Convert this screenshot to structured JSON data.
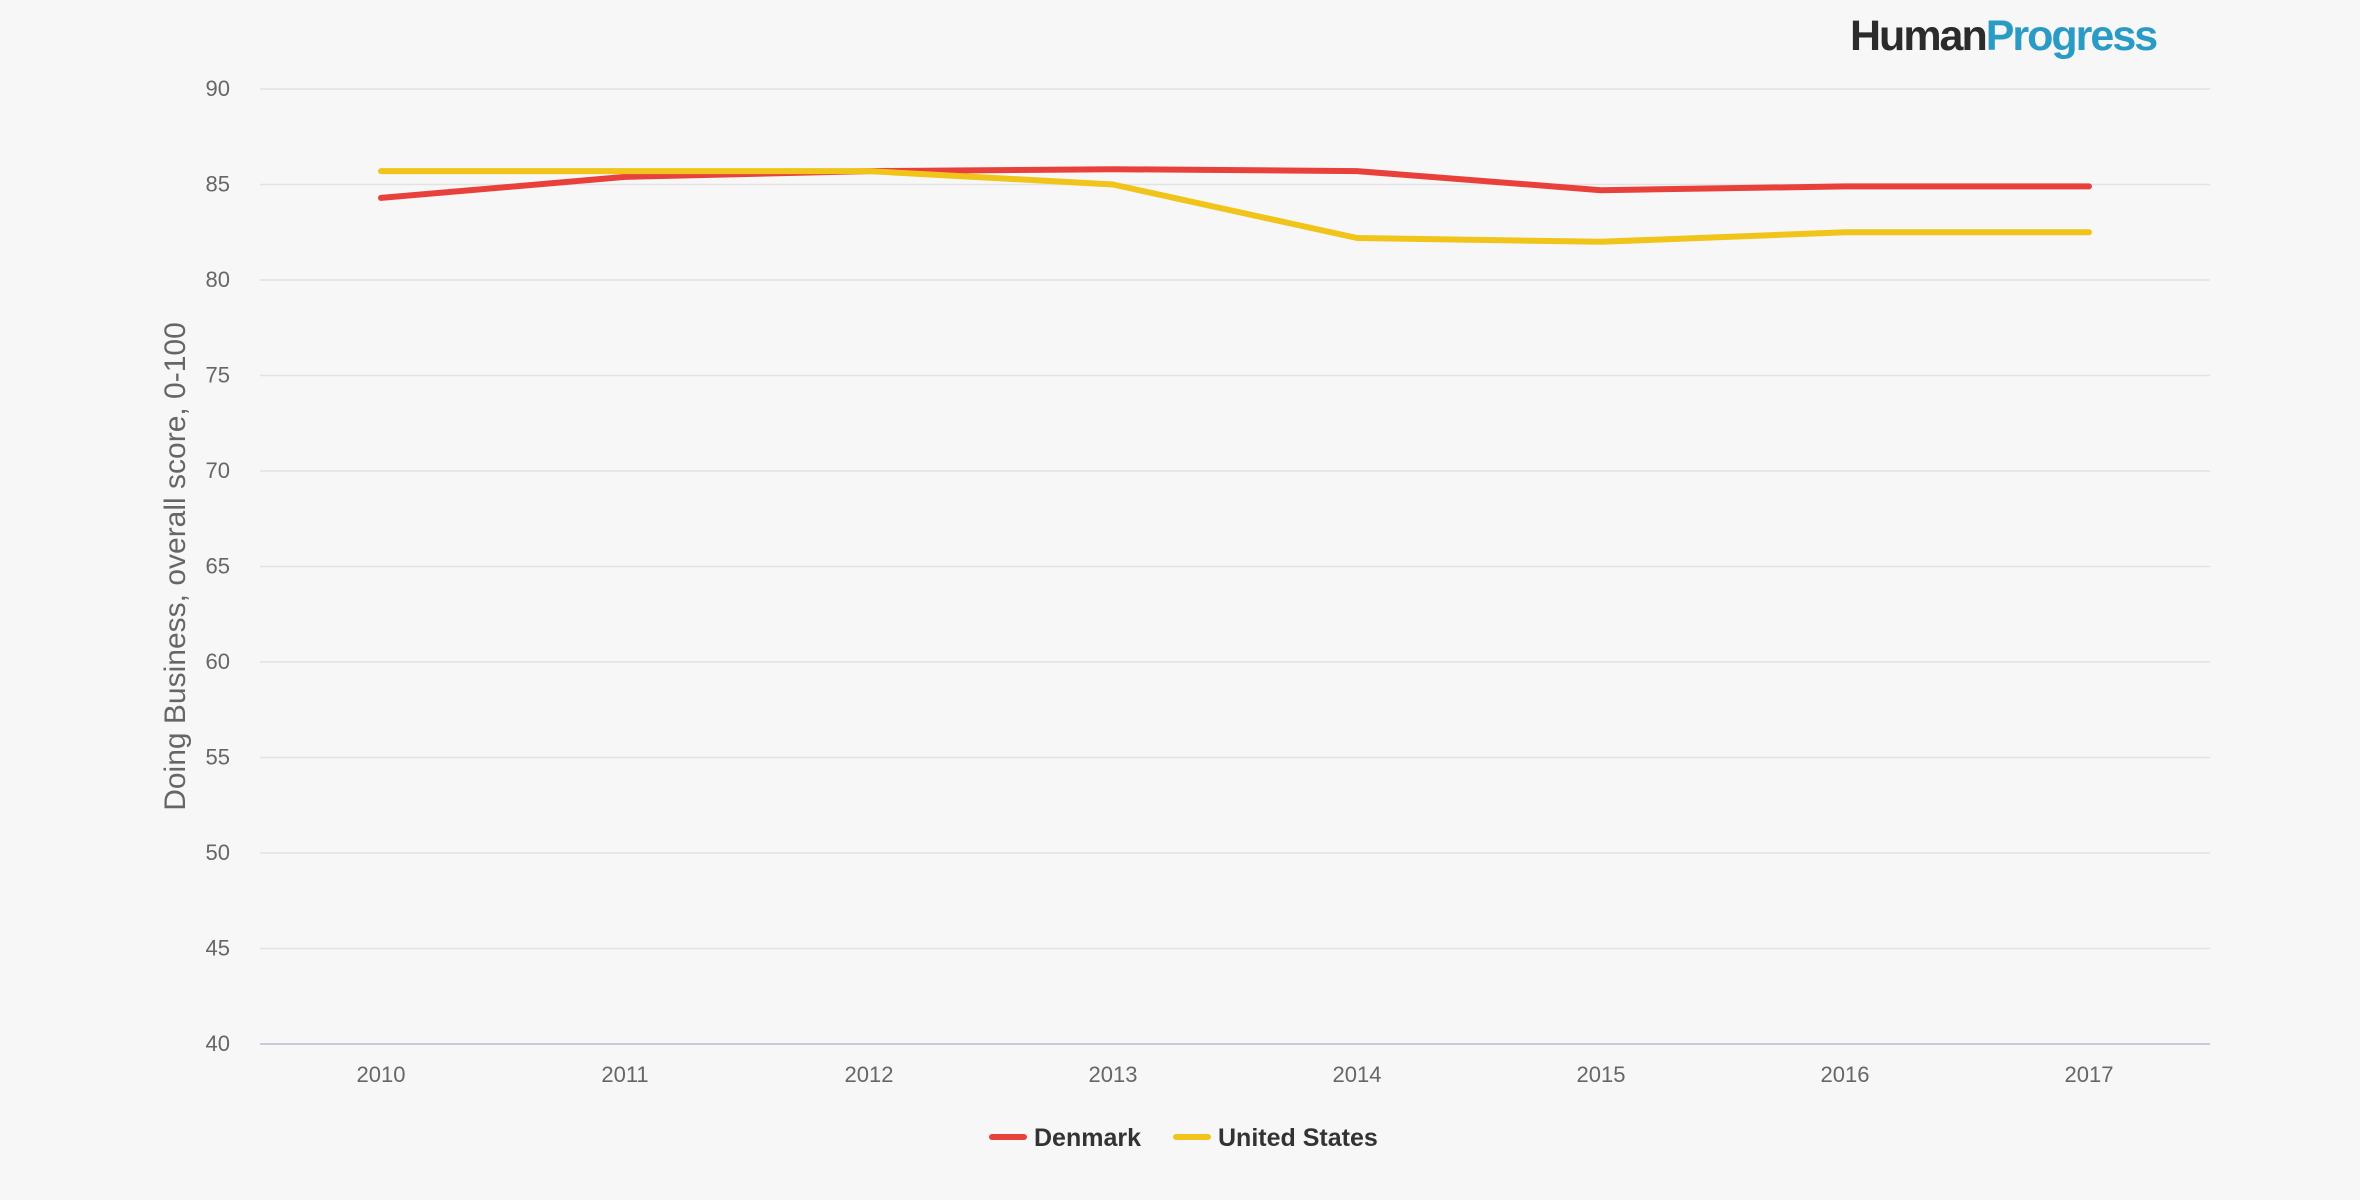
{
  "brand": {
    "part1": "Human",
    "part2": "Progress",
    "color1": "#2b2b2b",
    "color2": "#2a9bc4"
  },
  "chart_data": {
    "type": "line",
    "title": "",
    "xlabel": "",
    "ylabel": "Doing Business, overall score, 0-100",
    "x": [
      "2010",
      "2011",
      "2012",
      "2013",
      "2014",
      "2015",
      "2016",
      "2017"
    ],
    "ylim": [
      40,
      90
    ],
    "yticks": [
      "40",
      "45",
      "50",
      "55",
      "60",
      "65",
      "70",
      "75",
      "80",
      "85",
      "90"
    ],
    "grid": true,
    "legend_position": "bottom-center",
    "series": [
      {
        "name": "Denmark",
        "color": "#e8413c",
        "values": [
          84.3,
          85.4,
          85.7,
          85.8,
          85.7,
          84.7,
          84.9,
          84.9
        ]
      },
      {
        "name": "United States",
        "color": "#f0c419",
        "values": [
          85.7,
          85.7,
          85.7,
          85.0,
          82.2,
          82.0,
          82.5,
          82.5
        ]
      }
    ]
  }
}
